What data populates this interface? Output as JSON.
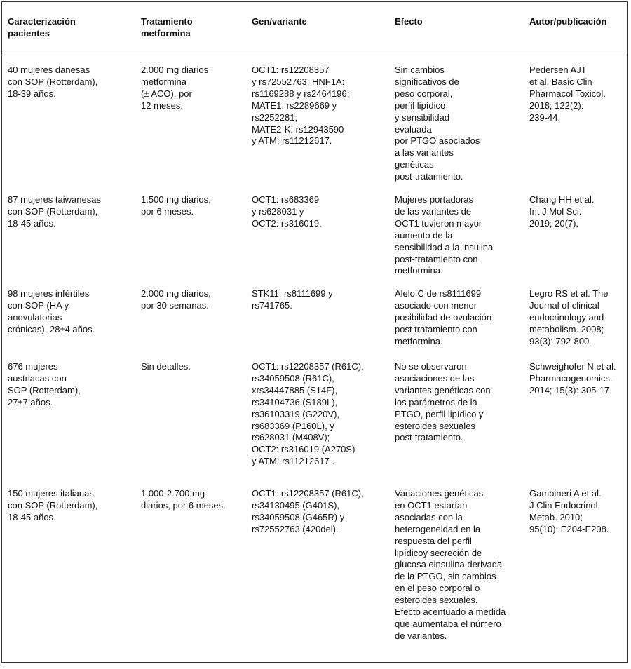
{
  "header": [
    "Caracterización\npacientes",
    "Tratamiento\nmetformina",
    "Gen/variante",
    "Efecto",
    "Autor/publicación"
  ],
  "rows": [
    [
      "40 mujeres danesas\ncon SOP (Rotterdam),\n18-39 años.",
      "2.000 mg diarios\nmetformina\n(± ACO), por\n12 meses.",
      "OCT1: rs12208357\ny rs72552763; HNF1A:\nrs1169288 y rs2464196;\nMATE1: rs2289669 y\nrs2252281;\nMATE2-K: rs12943590\ny ATM: rs11212617.",
      "Sin cambios\nsignificativos de\npeso corporal,\nperfil lipídico\ny sensibilidad\nevaluada\npor PTGO asociados\na las variantes\ngenéticas\npost-tratamiento.",
      "Pedersen AJT\net al. Basic Clin\nPharmacol Toxicol.\n2018; 122(2):\n239-44."
    ],
    [
      "87 mujeres taiwanesas\ncon SOP (Rotterdam),\n18-45 años.",
      "1.500 mg diarios,\npor 6 meses.",
      "OCT1: rs683369\ny rs628031 y\nOCT2: rs316019.",
      "Mujeres portadoras\nde las variantes de\nOCT1 tuvieron mayor\naumento de la\nsensibilidad a la insulina\npost-tratamiento con\nmetformina.",
      "Chang HH et al.\nInt J Mol Sci.\n2019; 20(7)."
    ],
    [
      "98 mujeres infértiles\ncon SOP (HA y\nanovulatorias\ncrónicas), 28±4 años.",
      "2.000 mg diarios,\npor 30 semanas.",
      "STK11: rs8111699 y\nrs741765.",
      "Alelo C de rs8111699\nasociado con menor\nposibilidad de ovulación\npost tratamiento con\nmetformina.",
      "Legro RS et al. The\nJournal of clinical\nendocrinology and\nmetabolism. 2008;\n93(3): 792-800."
    ],
    [
      "676 mujeres\naustriacas con\nSOP (Rotterdam),\n27±7 años.",
      "Sin detalles.",
      "OCT1: rs12208357 (R61C),\nrs34059508 (R61C),\nxrs34447885 (S14F),\nrs34104736 (S189L),\nrs36103319 (G220V),\nrs683369 (P160L), y\nrs628031 (M408V);\nOCT2: rs316019 (A270S)\ny ATM: rs11212617 .",
      "No se observaron\nasociaciones de las\nvariantes genéticas con\nlos parámetros de la\nPTGO, perfil lipídico y\nesteroides sexuales\npost-tratamiento.",
      "Schweighofer N et al.\nPharmacogenomics.\n2014; 15(3): 305-17."
    ],
    [
      "150 mujeres italianas\ncon SOP (Rotterdam),\n18-45 años.",
      "1.000-2.700 mg\ndiarios, por 6 meses.",
      "OCT1: rs12208357 (R61C),\nrs34130495 (G401S),\nrs34059508 (G465R) y\nrs72552763 (420del).",
      "Variaciones genéticas\nen OCT1 estarían\nasociadas con la\nheterogeneidad en la\nrespuesta del perfil\nlipídicoy secreción de\nglucosa einsulina derivada\nde la PTGO, sin cambios\nen el peso corporal o\nesteroides sexuales.\nEfecto acentuado a medida\nque aumentaba el número\nde variantes.",
      "Gambineri A et al.\nJ Clin Endocrinol\nMetab. 2010;\n95(10): E204-E208."
    ]
  ]
}
